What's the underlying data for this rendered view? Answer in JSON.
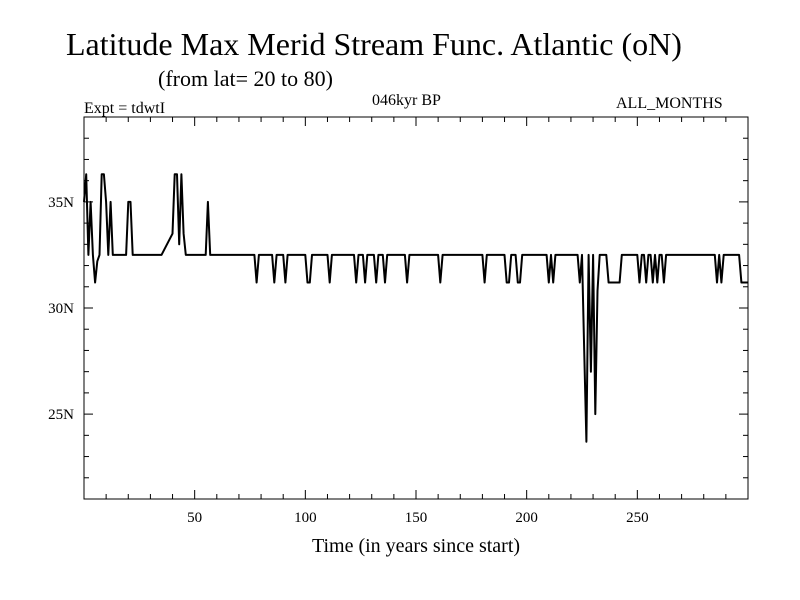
{
  "header": {
    "title": "Latitude Max Merid Stream Func. Atlantic (oN)",
    "subtitle": "(from lat= 20 to 80)",
    "experiment": "Expt = tdwtI",
    "period": "046kyr BP",
    "months": "ALL_MONTHS"
  },
  "chart_data": {
    "type": "line",
    "title": "Latitude Max Merid Stream Func. Atlantic (oN)",
    "xlabel": "Time (in years since start)",
    "ylabel": "",
    "xlim": [
      0,
      300
    ],
    "ylim": [
      21,
      39
    ],
    "x_ticks": [
      50,
      100,
      150,
      200,
      250
    ],
    "x_tick_labels": [
      "50",
      "100",
      "150",
      "200",
      "250"
    ],
    "y_ticks": [
      25,
      30,
      35
    ],
    "y_tick_labels": [
      "25N",
      "30N",
      "35N"
    ],
    "grid": false,
    "legend": "none",
    "line_color": "#000000",
    "series": [
      {
        "x": [
          0,
          1,
          2,
          3,
          4,
          5,
          6,
          7,
          8,
          9,
          10,
          11,
          12,
          13,
          14,
          15,
          17,
          19,
          20,
          21,
          22,
          23,
          25,
          28,
          35,
          40,
          41,
          42,
          43,
          44,
          45,
          46,
          47,
          48,
          55,
          56,
          57,
          60,
          70,
          77,
          78,
          79,
          80,
          85,
          86,
          87,
          88,
          90,
          91,
          92,
          93,
          100,
          101,
          102,
          103,
          110,
          111,
          112,
          113,
          120,
          122,
          123,
          124,
          126,
          127,
          128,
          130,
          131,
          132,
          133,
          135,
          136,
          137,
          138,
          145,
          146,
          147,
          148,
          160,
          161,
          162,
          163,
          178,
          180,
          181,
          182,
          190,
          191,
          192,
          193,
          195,
          196,
          197,
          198,
          209,
          210,
          211,
          212,
          213,
          220,
          223,
          224,
          225,
          226,
          227,
          228,
          229,
          230,
          231,
          232,
          233,
          236,
          237,
          238,
          240,
          242,
          243,
          244,
          245,
          250,
          251,
          252,
          253,
          254,
          255,
          256,
          257,
          258,
          259,
          260,
          261,
          262,
          263,
          265,
          270,
          285,
          286,
          287,
          288,
          289,
          290,
          295,
          296,
          297,
          298,
          300
        ],
        "y": [
          35,
          36.3,
          32.5,
          35,
          32.5,
          31.2,
          32.2,
          32.5,
          36.3,
          36.3,
          35,
          32.5,
          35,
          32.5,
          32.5,
          32.5,
          32.5,
          32.5,
          35,
          35,
          32.5,
          32.5,
          32.5,
          32.5,
          32.5,
          33.5,
          36.3,
          36.3,
          33,
          36.3,
          33.5,
          32.5,
          32.5,
          32.5,
          32.5,
          35,
          32.5,
          32.5,
          32.5,
          32.5,
          31.2,
          32.5,
          32.5,
          32.5,
          31.2,
          32.5,
          32.5,
          32.5,
          31.2,
          32.5,
          32.5,
          32.5,
          31.2,
          31.2,
          32.5,
          32.5,
          31.2,
          32.5,
          32.5,
          32.5,
          32.5,
          31.2,
          32.5,
          32.5,
          31.2,
          32.5,
          32.5,
          32.5,
          31.2,
          32.5,
          32.5,
          31.2,
          32.5,
          32.5,
          32.5,
          31.2,
          32.5,
          32.5,
          32.5,
          31.2,
          32.5,
          32.5,
          32.5,
          32.5,
          31.2,
          32.5,
          32.5,
          31.2,
          31.2,
          32.5,
          32.5,
          31.2,
          31.2,
          32.5,
          32.5,
          31.2,
          32.5,
          31.2,
          32.5,
          32.5,
          32.5,
          31.2,
          32.5,
          28,
          23.7,
          32.5,
          27,
          32.5,
          25,
          30.8,
          32.5,
          32.5,
          31.2,
          31.2,
          31.2,
          31.2,
          32.5,
          32.5,
          32.5,
          32.5,
          31.2,
          32.5,
          32.5,
          31.2,
          32.5,
          32.5,
          31.2,
          32.5,
          31.2,
          32.5,
          32.5,
          31.2,
          32.5,
          32.5,
          32.5,
          32.5,
          31.2,
          32.5,
          31.2,
          32.5,
          32.5,
          32.5,
          32.5,
          31.2,
          31.2,
          31.2
        ]
      }
    ]
  }
}
